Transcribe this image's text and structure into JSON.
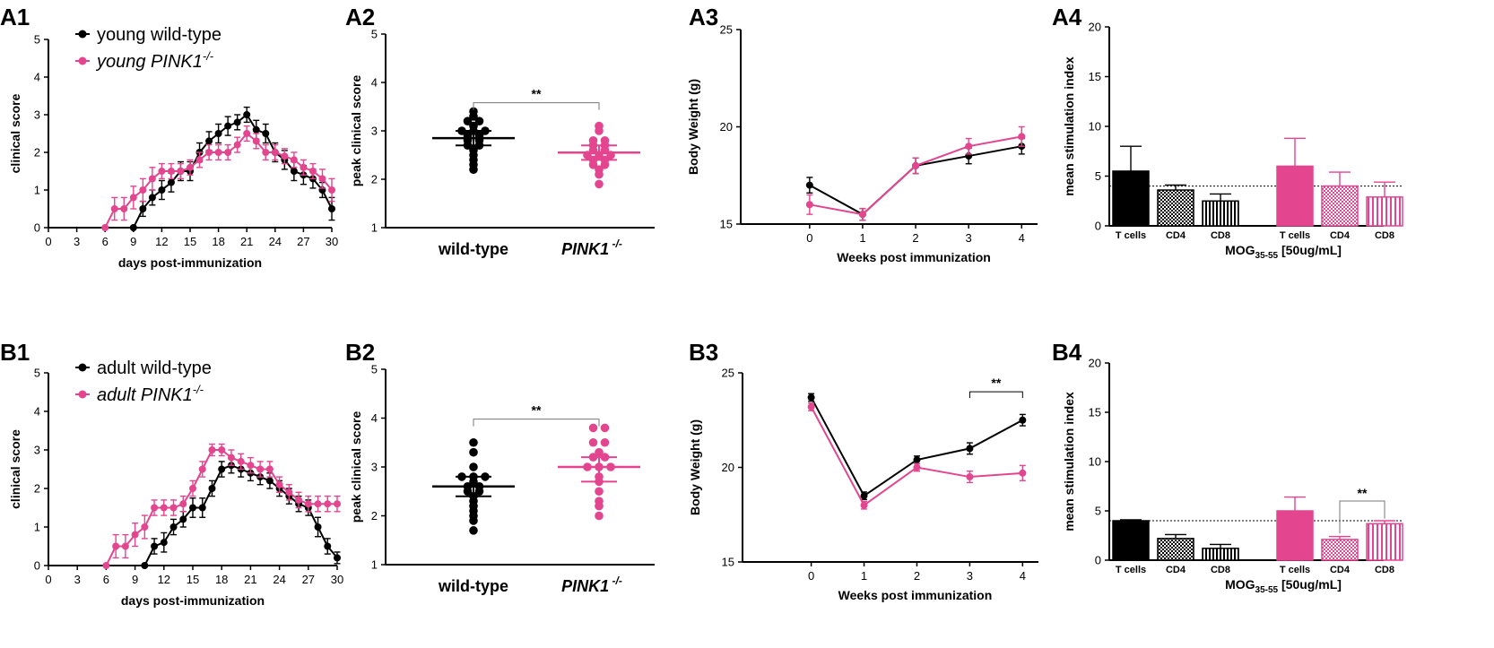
{
  "colors": {
    "wildtype": "#000000",
    "pink1": "#e4458f"
  },
  "chart_data": [
    {
      "id": "A1",
      "type": "line",
      "panel_label": "A1",
      "xlabel": "days post-immunization",
      "ylabel": "clinical score",
      "xlim": [
        0,
        30
      ],
      "ylim": [
        0,
        5
      ],
      "xticks": [
        "0",
        "3",
        "6",
        "9",
        "12",
        "15",
        "18",
        "21",
        "24",
        "27",
        "30"
      ],
      "yticks": [
        "0",
        "1",
        "2",
        "3",
        "4",
        "5"
      ],
      "legend": [
        {
          "text": "young wild-type",
          "series": 0
        },
        {
          "text": "young PINK1",
          "sup": "-/-",
          "series": 1
        }
      ],
      "series": [
        {
          "name": "young wild-type",
          "color": "#000000",
          "x": [
            9,
            10,
            11,
            12,
            13,
            14,
            15,
            16,
            17,
            18,
            19,
            20,
            21,
            22,
            23,
            24,
            25,
            26,
            27,
            28,
            29,
            30
          ],
          "y": [
            0,
            0.5,
            0.8,
            1.0,
            1.2,
            1.5,
            1.5,
            2.0,
            2.3,
            2.5,
            2.7,
            2.8,
            3.0,
            2.6,
            2.5,
            2.0,
            1.8,
            1.5,
            1.4,
            1.3,
            1.0,
            0.5
          ],
          "err": [
            0,
            0.2,
            0.2,
            0.25,
            0.25,
            0.25,
            0.25,
            0.25,
            0.25,
            0.25,
            0.25,
            0.2,
            0.2,
            0.25,
            0.25,
            0.25,
            0.25,
            0.25,
            0.25,
            0.25,
            0.2,
            0.3
          ]
        },
        {
          "name": "young PINK1-/-",
          "color": "#e4458f",
          "x": [
            6,
            7,
            8,
            9,
            10,
            11,
            12,
            13,
            14,
            15,
            16,
            17,
            18,
            19,
            20,
            21,
            22,
            23,
            24,
            25,
            26,
            27,
            28,
            29,
            30
          ],
          "y": [
            0,
            0.5,
            0.5,
            0.8,
            1.0,
            1.3,
            1.5,
            1.5,
            1.5,
            1.6,
            1.8,
            2.0,
            2.0,
            2.0,
            2.2,
            2.5,
            2.3,
            2.0,
            2.0,
            1.9,
            1.8,
            1.6,
            1.5,
            1.3,
            1.0
          ],
          "err": [
            0,
            0.3,
            0.3,
            0.3,
            0.3,
            0.3,
            0.2,
            0.2,
            0.2,
            0.2,
            0.2,
            0.2,
            0.2,
            0.2,
            0.2,
            0.2,
            0.2,
            0.2,
            0.2,
            0.2,
            0.2,
            0.2,
            0.2,
            0.25,
            0.3
          ]
        }
      ]
    },
    {
      "id": "A2",
      "type": "scatter",
      "panel_label": "A2",
      "ylabel": "peak clinical score",
      "ylim": [
        1,
        5
      ],
      "yticks": [
        "1",
        "2",
        "3",
        "4",
        "5"
      ],
      "groups": [
        {
          "label": "wild-type",
          "italic": false,
          "color": "#000000",
          "mean": 2.85,
          "ci": [
            2.7,
            3.0
          ],
          "values": [
            3.4,
            3.3,
            3.2,
            3.2,
            3.1,
            3.0,
            3.0,
            3.0,
            2.9,
            2.9,
            2.8,
            2.8,
            2.7,
            2.7,
            2.6,
            2.5,
            2.4,
            2.3,
            2.2
          ]
        },
        {
          "label": "PINK1",
          "sup": "-/-",
          "italic": true,
          "color": "#e4458f",
          "mean": 2.55,
          "ci": [
            2.4,
            2.7
          ],
          "values": [
            3.1,
            3.0,
            2.8,
            2.8,
            2.7,
            2.7,
            2.6,
            2.6,
            2.5,
            2.5,
            2.5,
            2.4,
            2.4,
            2.3,
            2.3,
            2.2,
            2.1,
            1.9
          ]
        }
      ],
      "significance": "**"
    },
    {
      "id": "A3",
      "type": "line",
      "panel_label": "A3",
      "xlabel": "Weeks post immunization",
      "ylabel": "Body Weight (g)",
      "xlim": [
        -1.3,
        4.3
      ],
      "ylim": [
        15,
        25
      ],
      "xticks": [
        "0",
        "1",
        "2",
        "3",
        "4"
      ],
      "yticks": [
        "15",
        "20",
        "25"
      ],
      "series": [
        {
          "name": "wild-type",
          "color": "#000000",
          "x": [
            0,
            1,
            2,
            3,
            4
          ],
          "y": [
            17.0,
            15.5,
            18.0,
            18.5,
            19.0
          ],
          "err": [
            0.4,
            0.3,
            0.4,
            0.4,
            0.4
          ]
        },
        {
          "name": "PINK1-/-",
          "color": "#e4458f",
          "x": [
            0,
            1,
            2,
            3,
            4
          ],
          "y": [
            16.0,
            15.5,
            18.0,
            19.0,
            19.5
          ],
          "err": [
            0.5,
            0.3,
            0.4,
            0.4,
            0.5
          ]
        }
      ]
    },
    {
      "id": "A4",
      "type": "bar",
      "panel_label": "A4",
      "ylabel": "mean stimulation index",
      "ylim": [
        0,
        20
      ],
      "yticks": [
        "0",
        "5",
        "10",
        "15",
        "20"
      ],
      "xlabel_main": "MOG",
      "xlabel_sub": "35-55",
      "xlabel_rest": " [50ug/mL]",
      "categories": [
        "T cells",
        "CD4",
        "CD8",
        "T cells",
        "CD4",
        "CD8"
      ],
      "values": [
        5.5,
        3.6,
        2.5,
        6.0,
        4.0,
        2.9
      ],
      "err": [
        2.5,
        0.5,
        0.7,
        2.8,
        1.4,
        1.5
      ],
      "threshold": 4,
      "significance": ""
    },
    {
      "id": "B1",
      "type": "line",
      "panel_label": "B1",
      "xlabel": "days post-immunization",
      "ylabel": "clinical score",
      "xlim": [
        0,
        30
      ],
      "ylim": [
        0,
        5
      ],
      "xticks": [
        "0",
        "3",
        "6",
        "9",
        "12",
        "15",
        "18",
        "21",
        "24",
        "27",
        "30"
      ],
      "yticks": [
        "0",
        "1",
        "2",
        "3",
        "4",
        "5"
      ],
      "legend": [
        {
          "text": "adult wild-type",
          "series": 0
        },
        {
          "text": "adult PINK1",
          "sup": "-/-",
          "series": 1
        }
      ],
      "series": [
        {
          "name": "adult wild-type",
          "color": "#000000",
          "x": [
            10,
            11,
            12,
            13,
            14,
            15,
            16,
            17,
            18,
            19,
            20,
            21,
            22,
            23,
            24,
            25,
            26,
            27,
            28,
            29,
            30
          ],
          "y": [
            0,
            0.5,
            0.6,
            1.0,
            1.2,
            1.5,
            1.5,
            2.0,
            2.5,
            2.6,
            2.5,
            2.4,
            2.3,
            2.2,
            2.0,
            1.8,
            1.6,
            1.5,
            1.0,
            0.5,
            0.2
          ],
          "err": [
            0,
            0.2,
            0.25,
            0.2,
            0.2,
            0.25,
            0.25,
            0.2,
            0.2,
            0.2,
            0.2,
            0.2,
            0.2,
            0.2,
            0.2,
            0.2,
            0.2,
            0.2,
            0.25,
            0.2,
            0.15
          ]
        },
        {
          "name": "adult PINK1-/-",
          "color": "#e4458f",
          "x": [
            6,
            7,
            8,
            9,
            10,
            11,
            12,
            13,
            14,
            15,
            16,
            17,
            18,
            19,
            20,
            21,
            22,
            23,
            24,
            25,
            26,
            27,
            28,
            29,
            30
          ],
          "y": [
            0,
            0.5,
            0.5,
            0.8,
            1.0,
            1.5,
            1.5,
            1.5,
            1.6,
            2.0,
            2.5,
            3.0,
            3.0,
            2.8,
            2.7,
            2.6,
            2.5,
            2.5,
            2.1,
            1.9,
            1.7,
            1.6,
            1.6,
            1.6,
            1.6
          ],
          "err": [
            0,
            0.3,
            0.3,
            0.3,
            0.3,
            0.2,
            0.2,
            0.2,
            0.2,
            0.2,
            0.2,
            0.15,
            0.15,
            0.2,
            0.2,
            0.2,
            0.2,
            0.2,
            0.2,
            0.2,
            0.2,
            0.2,
            0.2,
            0.2,
            0.2
          ]
        }
      ]
    },
    {
      "id": "B2",
      "type": "scatter",
      "panel_label": "B2",
      "ylabel": "peak clinical score",
      "ylim": [
        1,
        5
      ],
      "yticks": [
        "1",
        "2",
        "3",
        "4",
        "5"
      ],
      "groups": [
        {
          "label": "wild-type",
          "italic": false,
          "color": "#000000",
          "mean": 2.6,
          "ci": [
            2.4,
            2.8
          ],
          "values": [
            3.5,
            3.3,
            3.0,
            2.8,
            2.8,
            2.8,
            2.7,
            2.6,
            2.6,
            2.5,
            2.5,
            2.4,
            2.3,
            2.2,
            2.1,
            2.0,
            1.9,
            1.7
          ]
        },
        {
          "label": "PINK1",
          "sup": "-/-",
          "italic": true,
          "color": "#e4458f",
          "mean": 3.0,
          "ci": [
            2.7,
            3.2
          ],
          "values": [
            3.8,
            3.8,
            3.5,
            3.5,
            3.3,
            3.2,
            3.2,
            3.0,
            3.0,
            3.0,
            2.8,
            2.7,
            2.5,
            2.3,
            2.2,
            2.0
          ]
        }
      ],
      "significance": "**"
    },
    {
      "id": "B3",
      "type": "line",
      "panel_label": "B3",
      "xlabel": "Weeks post immunization",
      "ylabel": "Body Weight (g)",
      "xlim": [
        -1.3,
        4.3
      ],
      "ylim": [
        15,
        25
      ],
      "xticks": [
        "0",
        "1",
        "2",
        "3",
        "4"
      ],
      "yticks": [
        "15",
        "20",
        "25"
      ],
      "series": [
        {
          "name": "wild-type",
          "color": "#000000",
          "x": [
            0,
            1,
            2,
            3,
            4
          ],
          "y": [
            23.7,
            18.5,
            20.4,
            21.0,
            22.5
          ],
          "err": [
            0.2,
            0.2,
            0.2,
            0.3,
            0.3
          ]
        },
        {
          "name": "PINK1-/-",
          "color": "#e4458f",
          "x": [
            0,
            1,
            2,
            3,
            4
          ],
          "y": [
            23.2,
            18.0,
            20.0,
            19.5,
            19.7
          ],
          "err": [
            0.2,
            0.2,
            0.2,
            0.3,
            0.4
          ]
        }
      ],
      "significance": "**"
    },
    {
      "id": "B4",
      "type": "bar",
      "panel_label": "B4",
      "ylabel": "mean stimulation index",
      "ylim": [
        0,
        20
      ],
      "yticks": [
        "0",
        "5",
        "10",
        "15",
        "20"
      ],
      "xlabel_main": "MOG",
      "xlabel_sub": "35-55",
      "xlabel_rest": " [50ug/mL]",
      "categories": [
        "T cells",
        "CD4",
        "CD8",
        "T cells",
        "CD4",
        "CD8"
      ],
      "values": [
        4.0,
        2.2,
        1.2,
        5.0,
        2.1,
        3.7
      ],
      "err": [
        0.1,
        0.4,
        0.4,
        1.4,
        0.3,
        0.3
      ],
      "threshold": 4,
      "significance": "**"
    }
  ]
}
